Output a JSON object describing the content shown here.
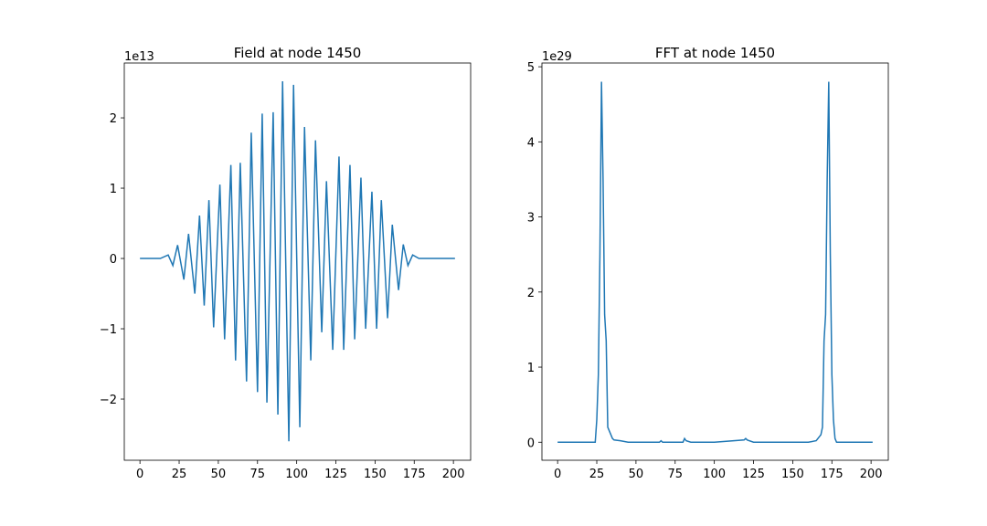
{
  "chart_data": [
    {
      "type": "line",
      "title": "Field at node 1450",
      "offset_text": "1e13",
      "x": [
        0,
        10,
        13,
        18,
        21,
        24,
        28,
        31,
        35,
        38,
        41,
        44,
        47,
        51,
        54,
        58,
        61,
        64,
        68,
        71,
        75,
        78,
        81,
        85,
        88,
        91,
        95,
        98,
        102,
        105,
        109,
        112,
        116,
        119,
        123,
        127,
        130,
        134,
        137,
        141,
        144,
        148,
        151,
        154,
        158,
        161,
        165,
        168,
        171,
        174,
        178,
        185,
        201
      ],
      "series": [
        {
          "color": "#1f77b4",
          "values": [
            0,
            0,
            0,
            0.05,
            -0.1,
            0.19,
            -0.3,
            0.35,
            -0.5,
            0.61,
            -0.67,
            0.83,
            -0.98,
            1.05,
            -1.15,
            1.33,
            -1.45,
            1.36,
            -1.75,
            1.79,
            -1.9,
            2.06,
            -2.05,
            2.08,
            -2.22,
            2.52,
            -2.6,
            2.47,
            -2.4,
            1.87,
            -1.45,
            1.68,
            -1.05,
            1.1,
            -1.3,
            1.45,
            -1.3,
            1.33,
            -1.15,
            1.15,
            -1.0,
            0.95,
            -1.0,
            0.83,
            -0.85,
            0.48,
            -0.45,
            0.2,
            -0.1,
            0.05,
            0,
            0,
            0
          ]
        }
      ],
      "xlim": [
        -10,
        211
      ],
      "ylim": [
        -2.87,
        2.78
      ],
      "xticks": [
        0,
        25,
        50,
        75,
        100,
        125,
        150,
        175,
        200
      ],
      "yticks": [
        {
          "value": -2,
          "label": "−2"
        },
        {
          "value": -1,
          "label": "−1"
        },
        0,
        1,
        2
      ]
    },
    {
      "type": "line",
      "title": "FFT at node 1450",
      "offset_text": "1e29",
      "x": [
        0,
        24,
        25,
        26,
        27,
        28,
        29,
        30,
        31,
        32,
        33,
        34,
        35,
        36,
        40,
        45,
        65,
        66,
        67,
        80,
        81,
        82,
        85,
        100,
        119,
        120,
        121,
        125,
        160,
        165,
        168,
        169,
        170,
        171,
        172,
        173,
        174,
        175,
        176,
        177,
        178,
        201
      ],
      "series": [
        {
          "color": "#1f77b4",
          "values": [
            0,
            0,
            0.3,
            0.9,
            2.5,
            4.8,
            3.5,
            1.7,
            1.35,
            0.2,
            0.15,
            0.1,
            0.05,
            0.03,
            0.02,
            0,
            0,
            0.02,
            0,
            0,
            0.05,
            0.02,
            0,
            0,
            0.03,
            0.05,
            0.03,
            0,
            0,
            0.02,
            0.1,
            0.2,
            1.35,
            1.7,
            3.5,
            4.8,
            2.5,
            0.9,
            0.3,
            0.05,
            0,
            0
          ]
        }
      ],
      "xlim": [
        -10,
        211
      ],
      "ylim": [
        -0.24,
        5.05
      ],
      "xticks": [
        0,
        25,
        50,
        75,
        100,
        125,
        150,
        175,
        200
      ],
      "yticks": [
        0,
        1,
        2,
        3,
        4,
        5
      ]
    }
  ]
}
